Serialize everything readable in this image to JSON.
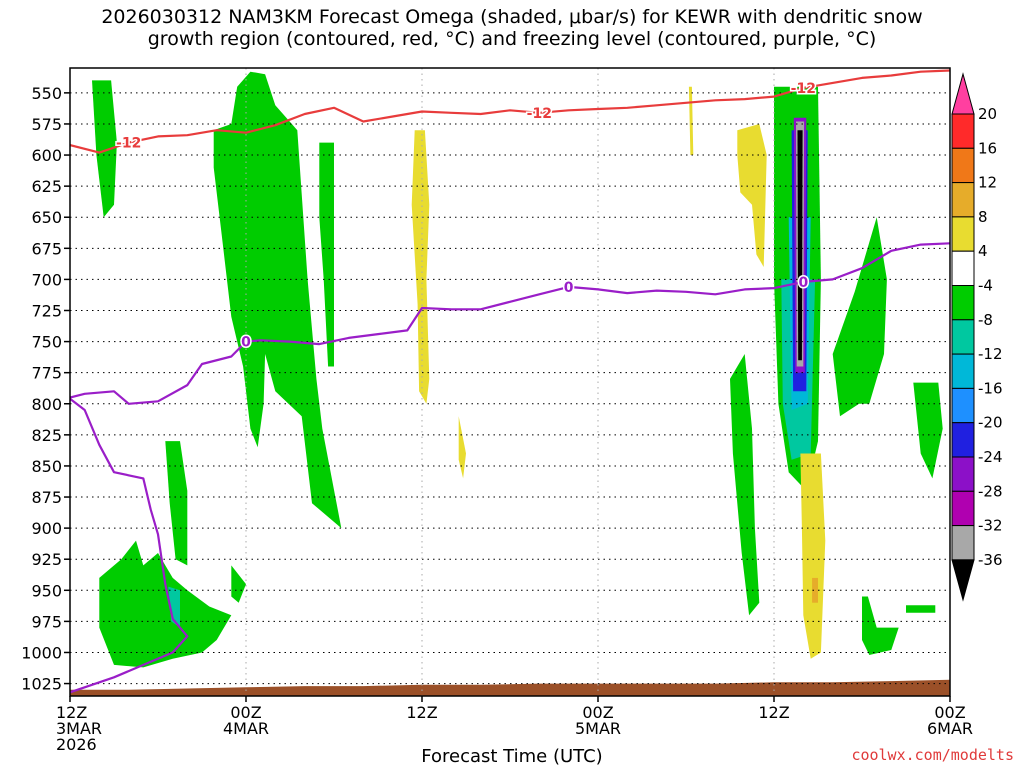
{
  "title_line1": "2026030312 NAM3KM Forecast Omega (shaded, μbar/s) for KEWR with dendritic snow",
  "title_line2": "growth region (contoured, red, °C) and freezing level (contoured, purple, °C)",
  "xlabel": "Forecast Time (UTC)",
  "credit": "coolwx.com/modelts",
  "chart_data": {
    "type": "heatmap",
    "x_unit": "forecast hour from 2026030312",
    "xlim": [
      0,
      60
    ],
    "y_unit": "pressure (mb)",
    "ylim": [
      1035,
      530
    ],
    "y_ticks": [
      550,
      575,
      600,
      625,
      650,
      675,
      700,
      725,
      750,
      775,
      800,
      825,
      850,
      875,
      900,
      925,
      950,
      975,
      1000,
      1025
    ],
    "x_ticks": [
      {
        "hour": 0,
        "lines": [
          "12Z",
          "3MAR",
          "2026"
        ]
      },
      {
        "hour": 12,
        "lines": [
          "00Z",
          "4MAR"
        ]
      },
      {
        "hour": 24,
        "lines": [
          "12Z"
        ]
      },
      {
        "hour": 36,
        "lines": [
          "00Z",
          "5MAR"
        ]
      },
      {
        "hour": 48,
        "lines": [
          "12Z"
        ]
      },
      {
        "hour": 60,
        "lines": [
          "00Z",
          "6MAR"
        ]
      }
    ],
    "grid": true,
    "colorbar": {
      "ticks": [
        20,
        16,
        12,
        8,
        4,
        -4,
        -8,
        -12,
        -16,
        -20,
        -24,
        -28,
        -32,
        -36
      ],
      "bins": [
        {
          "color": "#ff3fa0"
        },
        {
          "color": "#ff2a2a"
        },
        {
          "color": "#f07818"
        },
        {
          "color": "#e6ac2a"
        },
        {
          "color": "#e8dc30"
        },
        {
          "color": "#ffffff"
        },
        {
          "color": "#00cc00"
        },
        {
          "color": "#00c8a0"
        },
        {
          "color": "#00b8d8"
        },
        {
          "color": "#1e90ff"
        },
        {
          "color": "#2020e0"
        },
        {
          "color": "#8c10c8"
        },
        {
          "color": "#b000b0"
        },
        {
          "color": "#a8a8a8"
        },
        {
          "color": "#000000"
        }
      ]
    },
    "contours": [
      {
        "label": "-12",
        "color": "#e83c3c",
        "points": [
          [
            0,
            592
          ],
          [
            2,
            598
          ],
          [
            4,
            590
          ],
          [
            6,
            585
          ],
          [
            8,
            584
          ],
          [
            10,
            580
          ],
          [
            12,
            582
          ],
          [
            14,
            576
          ],
          [
            16,
            567
          ],
          [
            18,
            562
          ],
          [
            20,
            573
          ],
          [
            22,
            569
          ],
          [
            24,
            565
          ],
          [
            26,
            566
          ],
          [
            28,
            567
          ],
          [
            30,
            564
          ],
          [
            32,
            566
          ],
          [
            34,
            564
          ],
          [
            36,
            563
          ],
          [
            38,
            562
          ],
          [
            40,
            560
          ],
          [
            42,
            558
          ],
          [
            44,
            556
          ],
          [
            46,
            555
          ],
          [
            48,
            553
          ],
          [
            50,
            546
          ],
          [
            52,
            542
          ],
          [
            54,
            538
          ],
          [
            56,
            536
          ],
          [
            58,
            533
          ],
          [
            60,
            532
          ]
        ]
      },
      {
        "label": "0",
        "color": "#9a1ec8",
        "points": [
          [
            0,
            795
          ],
          [
            1,
            792
          ],
          [
            3,
            790
          ],
          [
            4,
            800
          ],
          [
            6,
            798
          ],
          [
            8,
            785
          ],
          [
            9,
            768
          ],
          [
            11,
            762
          ],
          [
            12,
            750
          ],
          [
            13,
            749
          ],
          [
            15,
            750
          ],
          [
            17,
            752
          ],
          [
            19,
            747
          ],
          [
            21,
            744
          ],
          [
            23,
            741
          ],
          [
            24,
            723
          ],
          [
            26,
            724
          ],
          [
            28,
            724
          ],
          [
            30,
            718
          ],
          [
            32,
            712
          ],
          [
            34,
            706
          ],
          [
            36,
            708
          ],
          [
            38,
            711
          ],
          [
            40,
            709
          ],
          [
            42,
            710
          ],
          [
            44,
            712
          ],
          [
            46,
            708
          ],
          [
            48,
            707
          ],
          [
            50,
            702
          ],
          [
            52,
            700
          ],
          [
            54,
            691
          ],
          [
            56,
            677
          ],
          [
            58,
            672
          ],
          [
            60,
            671
          ]
        ]
      },
      {
        "color": "#9a1ec8",
        "points": [
          [
            0,
            796
          ],
          [
            1,
            805
          ],
          [
            2,
            833
          ],
          [
            3,
            855
          ],
          [
            5,
            860
          ],
          [
            5.5,
            885
          ],
          [
            6,
            905
          ],
          [
            6.5,
            945
          ],
          [
            7,
            973
          ],
          [
            8,
            987
          ],
          [
            7,
            1000
          ],
          [
            5,
            1010
          ],
          [
            3,
            1020
          ],
          [
            1,
            1028
          ],
          [
            0,
            1032
          ]
        ]
      }
    ],
    "shaded_regions": [
      {
        "color": "#00cc00",
        "points": [
          [
            1.5,
            540
          ],
          [
            2.8,
            540
          ],
          [
            3.2,
            590
          ],
          [
            3,
            640
          ],
          [
            2.3,
            650
          ],
          [
            1.8,
            600
          ]
        ]
      },
      {
        "color": "#00cc00",
        "points": [
          [
            9.8,
            580
          ],
          [
            11,
            575
          ],
          [
            11.4,
            545
          ],
          [
            12.3,
            533
          ],
          [
            13.3,
            535
          ],
          [
            14,
            560
          ],
          [
            15.5,
            580
          ],
          [
            16.2,
            700
          ],
          [
            16.8,
            780
          ],
          [
            17.2,
            820
          ],
          [
            18.5,
            900
          ],
          [
            16.5,
            880
          ],
          [
            15.8,
            810
          ],
          [
            14,
            790
          ],
          [
            13.3,
            760
          ],
          [
            13.2,
            800
          ],
          [
            12.8,
            835
          ],
          [
            12.3,
            820
          ],
          [
            11.8,
            770
          ],
          [
            11,
            730
          ],
          [
            10.3,
            660
          ],
          [
            9.8,
            610
          ]
        ]
      },
      {
        "color": "#00cc00",
        "points": [
          [
            17,
            590
          ],
          [
            18,
            590
          ],
          [
            18,
            770
          ],
          [
            17.6,
            770
          ],
          [
            17.3,
            700
          ],
          [
            17,
            650
          ]
        ]
      },
      {
        "color": "#00cc00",
        "points": [
          [
            2,
            940
          ],
          [
            3.5,
            925
          ],
          [
            4.5,
            910
          ],
          [
            5,
            930
          ],
          [
            6,
            920
          ],
          [
            7,
            940
          ],
          [
            8,
            950
          ],
          [
            9.5,
            963
          ],
          [
            11,
            970
          ],
          [
            10,
            990
          ],
          [
            9,
            1000
          ],
          [
            7,
            1005
          ],
          [
            5,
            1012
          ],
          [
            3,
            1010
          ],
          [
            2,
            980
          ]
        ]
      },
      {
        "color": "#00cc00",
        "points": [
          [
            6.5,
            830
          ],
          [
            7.5,
            830
          ],
          [
            8,
            870
          ],
          [
            8,
            930
          ],
          [
            7.2,
            925
          ],
          [
            6.8,
            880
          ]
        ]
      },
      {
        "color": "#00cc00",
        "points": [
          [
            11,
            930
          ],
          [
            12,
            945
          ],
          [
            11.5,
            960
          ],
          [
            11,
            955
          ]
        ]
      },
      {
        "color": "#00cc00",
        "points": [
          [
            45,
            780
          ],
          [
            46,
            760
          ],
          [
            46.5,
            820
          ],
          [
            46.7,
            900
          ],
          [
            47,
            960
          ],
          [
            46.3,
            970
          ],
          [
            45.8,
            920
          ],
          [
            45.2,
            840
          ]
        ]
      },
      {
        "color": "#00cc00",
        "points": [
          [
            48,
            545
          ],
          [
            51,
            545
          ],
          [
            51.2,
            700
          ],
          [
            51,
            830
          ],
          [
            50.2,
            870
          ],
          [
            49,
            855
          ],
          [
            48.3,
            800
          ],
          [
            48,
            700
          ]
        ]
      },
      {
        "color": "#00cc00",
        "points": [
          [
            52,
            760
          ],
          [
            53.5,
            710
          ],
          [
            55,
            650
          ],
          [
            55.7,
            700
          ],
          [
            55.5,
            760
          ],
          [
            54.5,
            800
          ],
          [
            53.8,
            800
          ],
          [
            52.5,
            810
          ]
        ]
      },
      {
        "color": "#00cc00",
        "points": [
          [
            57.5,
            783
          ],
          [
            59.2,
            783
          ],
          [
            59.5,
            820
          ],
          [
            58.8,
            860
          ],
          [
            58,
            840
          ]
        ]
      },
      {
        "color": "#00cc00",
        "points": [
          [
            54,
            955
          ],
          [
            54.4,
            955
          ],
          [
            55,
            980
          ],
          [
            56.5,
            980
          ],
          [
            56,
            998
          ],
          [
            54.5,
            1002
          ],
          [
            54,
            990
          ]
        ]
      },
      {
        "color": "#00cc00",
        "points": [
          [
            57,
            962
          ],
          [
            59,
            962
          ],
          [
            59,
            968
          ],
          [
            57,
            968
          ]
        ]
      },
      {
        "color": "#00c8a0",
        "points": [
          [
            6.7,
            947
          ],
          [
            7.5,
            950
          ],
          [
            7.5,
            980
          ],
          [
            6.9,
            975
          ]
        ]
      },
      {
        "color": "#00c8a0",
        "points": [
          [
            48.5,
            700
          ],
          [
            50.8,
            700
          ],
          [
            50.5,
            840
          ],
          [
            49.2,
            845
          ],
          [
            48.6,
            800
          ]
        ]
      },
      {
        "color": "#00b8d8",
        "points": [
          [
            49,
            650
          ],
          [
            50.5,
            650
          ],
          [
            50.3,
            800
          ],
          [
            49.2,
            805
          ]
        ]
      },
      {
        "color": "#2020e0",
        "points": [
          [
            49.2,
            580
          ],
          [
            50.3,
            580
          ],
          [
            50.2,
            790
          ],
          [
            49.3,
            790
          ]
        ]
      },
      {
        "color": "#8c10c8",
        "points": [
          [
            49.35,
            570
          ],
          [
            50.2,
            570
          ],
          [
            50.1,
            775
          ],
          [
            49.45,
            775
          ]
        ]
      },
      {
        "color": "#a8a8a8",
        "points": [
          [
            49.5,
            573
          ],
          [
            50.05,
            573
          ],
          [
            50,
            770
          ],
          [
            49.55,
            770
          ]
        ]
      },
      {
        "color": "#000000",
        "points": [
          [
            49.6,
            580
          ],
          [
            49.95,
            580
          ],
          [
            49.9,
            765
          ],
          [
            49.65,
            765
          ]
        ]
      },
      {
        "color": "#e8dc30",
        "points": [
          [
            23.5,
            580
          ],
          [
            24.2,
            580
          ],
          [
            24.5,
            640
          ],
          [
            24.3,
            700
          ],
          [
            24.5,
            780
          ],
          [
            24.3,
            800
          ],
          [
            23.8,
            790
          ],
          [
            23.7,
            720
          ],
          [
            23.3,
            640
          ]
        ]
      },
      {
        "color": "#e8dc30",
        "points": [
          [
            26.5,
            810
          ],
          [
            27,
            840
          ],
          [
            26.8,
            860
          ],
          [
            26.5,
            845
          ]
        ]
      },
      {
        "color": "#e8dc30",
        "points": [
          [
            42.2,
            545
          ],
          [
            42.4,
            545
          ],
          [
            42.5,
            600
          ],
          [
            42.3,
            600
          ]
        ]
      },
      {
        "color": "#e8dc30",
        "points": [
          [
            45.5,
            580
          ],
          [
            47,
            575
          ],
          [
            47.5,
            600
          ],
          [
            47.3,
            690
          ],
          [
            46.8,
            680
          ],
          [
            46.5,
            640
          ],
          [
            45.7,
            630
          ],
          [
            45.5,
            600
          ]
        ]
      },
      {
        "color": "#e8dc30",
        "points": [
          [
            49.8,
            840
          ],
          [
            51.2,
            840
          ],
          [
            51.5,
            910
          ],
          [
            51.2,
            1000
          ],
          [
            50.5,
            1005
          ],
          [
            50,
            970
          ],
          [
            49.9,
            900
          ]
        ]
      },
      {
        "color": "#e6ac2a",
        "points": [
          [
            50.6,
            940
          ],
          [
            51,
            940
          ],
          [
            51,
            960
          ],
          [
            50.6,
            960
          ]
        ]
      }
    ],
    "ground_level": [
      [
        0,
        1030
      ],
      [
        4,
        1030
      ],
      [
        8,
        1029
      ],
      [
        12,
        1028
      ],
      [
        16,
        1027
      ],
      [
        20,
        1027
      ],
      [
        24,
        1026
      ],
      [
        28,
        1026
      ],
      [
        32,
        1025
      ],
      [
        36,
        1025
      ],
      [
        40,
        1025
      ],
      [
        44,
        1025
      ],
      [
        48,
        1024
      ],
      [
        52,
        1024
      ],
      [
        56,
        1023
      ],
      [
        60,
        1022
      ]
    ],
    "ground_color": "#9b5028"
  }
}
